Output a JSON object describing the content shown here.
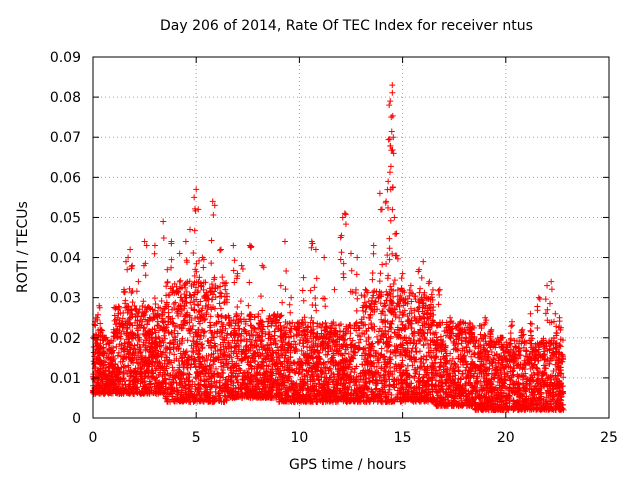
{
  "chart_data": {
    "type": "scatter",
    "title": "Day 206 of 2014, Rate Of TEC Index for receiver ntus",
    "xlabel": "GPS time / hours",
    "ylabel": "ROTI / TECUs",
    "xlim": [
      0,
      25
    ],
    "ylim": [
      0,
      0.09
    ],
    "x_ticks": [
      "0",
      "5",
      "10",
      "15",
      "20",
      "25"
    ],
    "y_ticks": [
      "0",
      "0.01",
      "0.02",
      "0.03",
      "0.04",
      "0.05",
      "0.06",
      "0.07",
      "0.08",
      "0.09"
    ],
    "grid": true,
    "marker": "+",
    "series": [
      {
        "name": "ROTI",
        "color": "#ff0000",
        "points": [
          [
            0.1,
            0.024
          ],
          [
            0.2,
            0.025
          ],
          [
            0.3,
            0.028
          ],
          [
            0.4,
            0.022
          ],
          [
            0.6,
            0.02
          ],
          [
            1.0,
            0.022
          ],
          [
            1.2,
            0.025
          ],
          [
            1.5,
            0.032
          ],
          [
            1.6,
            0.039
          ],
          [
            1.7,
            0.04
          ],
          [
            1.8,
            0.042
          ],
          [
            1.9,
            0.038
          ],
          [
            2.2,
            0.034
          ],
          [
            2.5,
            0.044
          ],
          [
            2.6,
            0.043
          ],
          [
            3.0,
            0.043
          ],
          [
            3.4,
            0.049
          ],
          [
            3.6,
            0.037
          ],
          [
            3.8,
            0.044
          ],
          [
            4.2,
            0.041
          ],
          [
            4.5,
            0.044
          ],
          [
            4.7,
            0.047
          ],
          [
            4.9,
            0.055
          ],
          [
            5.0,
            0.057
          ],
          [
            5.1,
            0.052
          ],
          [
            5.3,
            0.04
          ],
          [
            5.8,
            0.054
          ],
          [
            5.9,
            0.053
          ],
          [
            6.2,
            0.042
          ],
          [
            6.8,
            0.043
          ],
          [
            7.0,
            0.036
          ],
          [
            7.2,
            0.038
          ],
          [
            7.6,
            0.043
          ],
          [
            8.2,
            0.038
          ],
          [
            9.1,
            0.033
          ],
          [
            9.3,
            0.044
          ],
          [
            9.6,
            0.03
          ],
          [
            10.2,
            0.035
          ],
          [
            10.6,
            0.044
          ],
          [
            10.8,
            0.042
          ],
          [
            11.2,
            0.04
          ],
          [
            11.7,
            0.032
          ],
          [
            12.0,
            0.045
          ],
          [
            12.1,
            0.05
          ],
          [
            12.2,
            0.051
          ],
          [
            12.5,
            0.041
          ],
          [
            12.8,
            0.04
          ],
          [
            13.2,
            0.032
          ],
          [
            13.6,
            0.043
          ],
          [
            13.9,
            0.056
          ],
          [
            14.0,
            0.052
          ],
          [
            14.2,
            0.054
          ],
          [
            14.3,
            0.059
          ],
          [
            14.35,
            0.078
          ],
          [
            14.4,
            0.079
          ],
          [
            14.45,
            0.075
          ],
          [
            14.5,
            0.083
          ],
          [
            14.55,
            0.07
          ],
          [
            14.6,
            0.05
          ],
          [
            14.7,
            0.046
          ],
          [
            15.0,
            0.036
          ],
          [
            15.4,
            0.033
          ],
          [
            15.8,
            0.037
          ],
          [
            16.0,
            0.039
          ],
          [
            16.3,
            0.034
          ],
          [
            16.8,
            0.032
          ],
          [
            17.3,
            0.025
          ],
          [
            17.8,
            0.024
          ],
          [
            18.3,
            0.022
          ],
          [
            18.8,
            0.023
          ],
          [
            19.0,
            0.025
          ],
          [
            19.3,
            0.022
          ],
          [
            19.8,
            0.02
          ],
          [
            20.3,
            0.024
          ],
          [
            20.8,
            0.022
          ],
          [
            21.2,
            0.026
          ],
          [
            21.6,
            0.03
          ],
          [
            22.0,
            0.033
          ],
          [
            22.2,
            0.034
          ],
          [
            22.4,
            0.026
          ],
          [
            22.6,
            0.025
          ]
        ],
        "band": {
          "description": "dense cloud of samples covering roughly these ranges",
          "segments": [
            [
              0.0,
              1.0,
              0.006,
              0.02
            ],
            [
              1.0,
              3.5,
              0.006,
              0.028
            ],
            [
              3.5,
              6.5,
              0.004,
              0.034
            ],
            [
              6.5,
              9.0,
              0.005,
              0.026
            ],
            [
              9.0,
              13.0,
              0.004,
              0.024
            ],
            [
              13.0,
              16.5,
              0.004,
              0.032
            ],
            [
              16.5,
              18.5,
              0.003,
              0.024
            ],
            [
              18.5,
              22.8,
              0.002,
              0.02
            ]
          ]
        }
      }
    ]
  }
}
